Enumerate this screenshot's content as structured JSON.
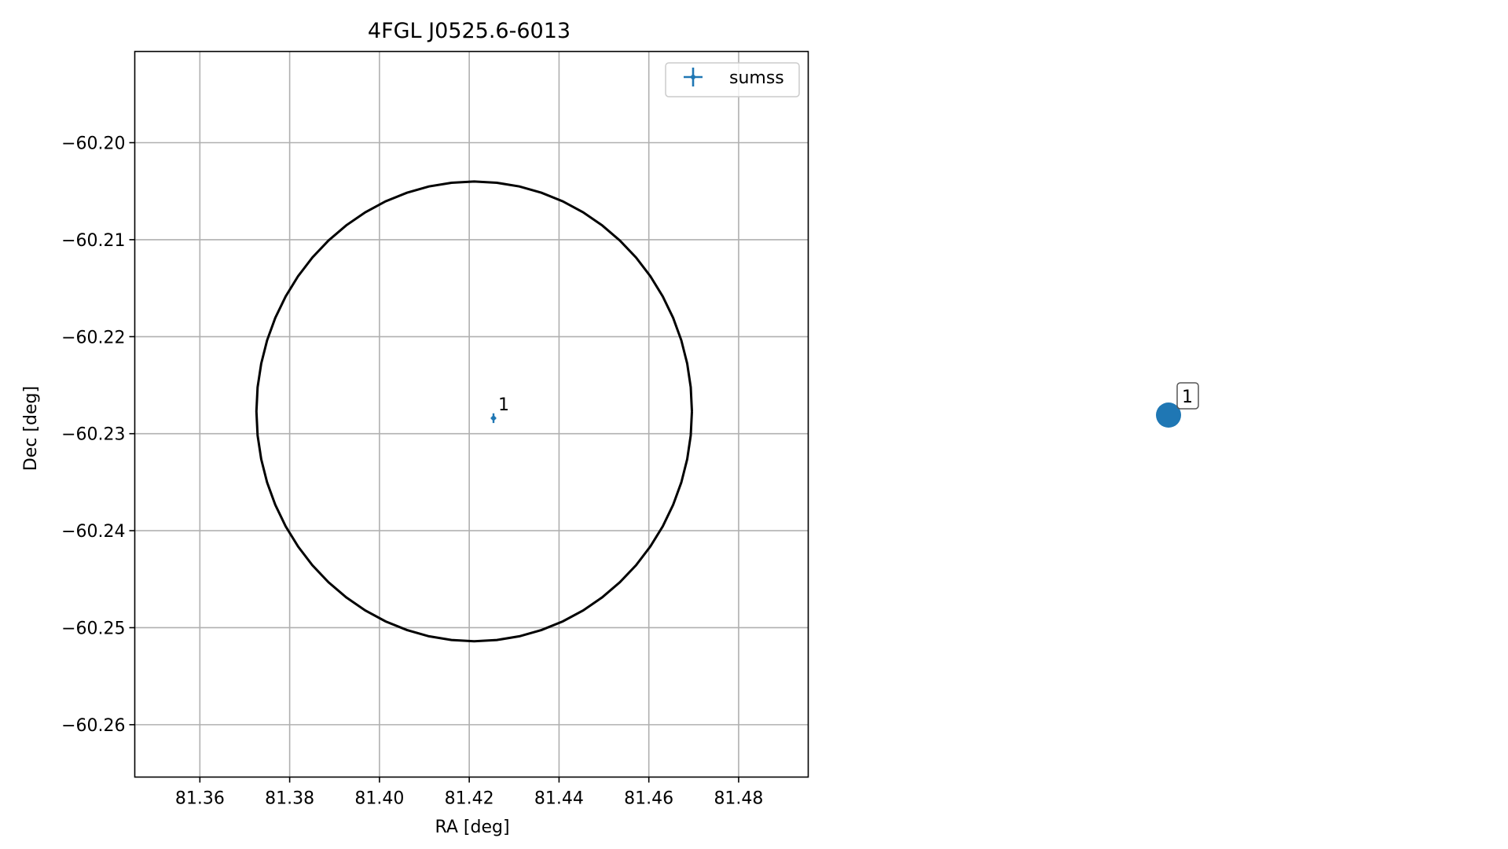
{
  "chart_data": {
    "type": "scatter",
    "title": "4FGL J0525.6-6013",
    "xlabel": "RA [deg]",
    "ylabel": "Dec [deg]",
    "xlim": [
      81.3455,
      81.4955
    ],
    "ylim": [
      -60.2654,
      -60.1906
    ],
    "xticks": [
      81.36,
      81.38,
      81.4,
      81.42,
      81.44,
      81.46,
      81.48
    ],
    "xtick_labels": [
      "81.36",
      "81.38",
      "81.40",
      "81.42",
      "81.44",
      "81.46",
      "81.48"
    ],
    "yticks": [
      -60.2,
      -60.21,
      -60.22,
      -60.23,
      -60.24,
      -60.25,
      -60.26
    ],
    "ytick_labels": [
      "−60.20",
      "−60.21",
      "−60.22",
      "−60.23",
      "−60.24",
      "−60.25",
      "−60.26"
    ],
    "grid": true,
    "legend": {
      "position": "top-right",
      "entries": [
        "sumss"
      ]
    },
    "series": [
      {
        "name": "sumss",
        "color": "#1f77b4",
        "marker": "errorbar",
        "points": [
          {
            "ra": 81.4254,
            "dec": -60.2284,
            "ra_err": 0.0006,
            "dec_err": 0.0005,
            "label": "1"
          }
        ]
      }
    ],
    "ellipse": {
      "color": "#000000",
      "ra_center": 81.4211,
      "dec_center": -60.2277,
      "ra_radius": 0.0485,
      "dec_radius": 0.0237
    },
    "side_panel": {
      "marker_color": "#1f77b4",
      "label": "1"
    }
  }
}
